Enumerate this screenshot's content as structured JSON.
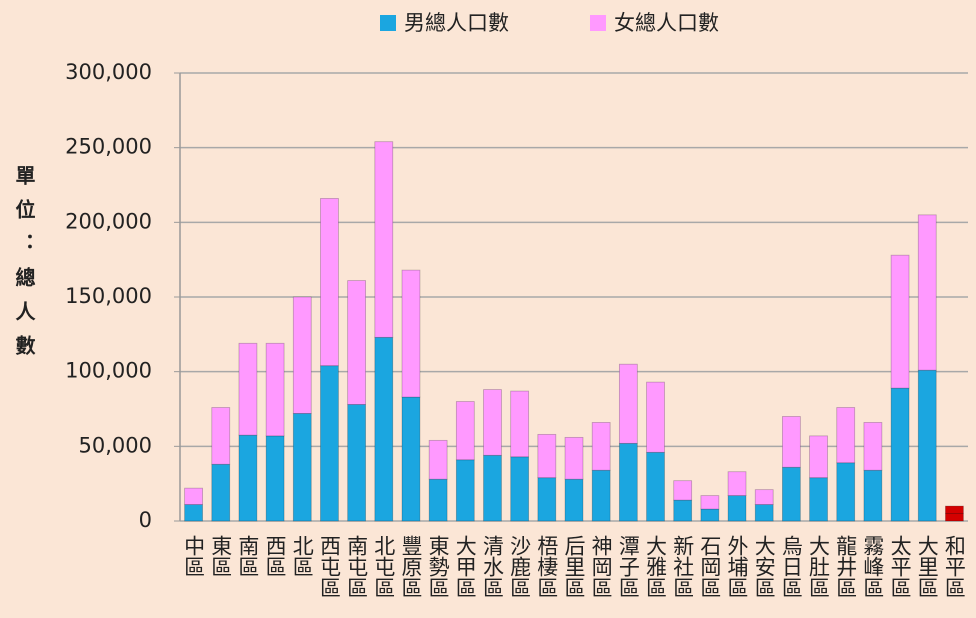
{
  "chart_data": {
    "type": "stacked_bar",
    "y_axis_label": "單位：總人數",
    "categories": [
      "中區",
      "東區",
      "南區",
      "西區",
      "北區",
      "西屯區",
      "南屯區",
      "北屯區",
      "豐原區",
      "東勢區",
      "大甲區",
      "清水區",
      "沙鹿區",
      "梧棲區",
      "后里區",
      "神岡區",
      "潭子區",
      "大雅區",
      "新社區",
      "石岡區",
      "外埔區",
      "大安區",
      "烏日區",
      "大肚區",
      "龍井區",
      "霧峰區",
      "太平區",
      "大里區",
      "和平區"
    ],
    "series": [
      {
        "name": "男總人口數",
        "color": "#1ba6e0",
        "values": [
          11000,
          38000,
          57500,
          57000,
          72000,
          104000,
          78000,
          123000,
          83000,
          28000,
          41000,
          44000,
          43000,
          29000,
          28000,
          34000,
          52000,
          46000,
          14000,
          8000,
          17000,
          11000,
          36000,
          29000,
          39000,
          34000,
          89000,
          101000,
          5000
        ]
      },
      {
        "name": "女總人口數",
        "color": "#ff99ff",
        "values": [
          11000,
          38000,
          61500,
          62000,
          78000,
          112000,
          83000,
          131000,
          85000,
          26000,
          39000,
          44000,
          44000,
          29000,
          28000,
          32000,
          53000,
          47000,
          13000,
          9000,
          16000,
          10000,
          34000,
          28000,
          37000,
          32000,
          89000,
          104000,
          5000
        ]
      }
    ],
    "highlight_category": "和平區",
    "highlight_color": "#d40000",
    "ylim": [
      0,
      300000
    ],
    "yticks": [
      0,
      {
        "value": 50000,
        "label": "50,000"
      },
      {
        "value": 100000,
        "label": "100,000"
      },
      {
        "value": 150000,
        "label": "150,000"
      },
      {
        "value": 200000,
        "label": "200,000"
      },
      {
        "value": 250000,
        "label": "250,000"
      },
      {
        "value": 300000,
        "label": "300,000"
      }
    ],
    "grid": true,
    "legend": "top"
  }
}
